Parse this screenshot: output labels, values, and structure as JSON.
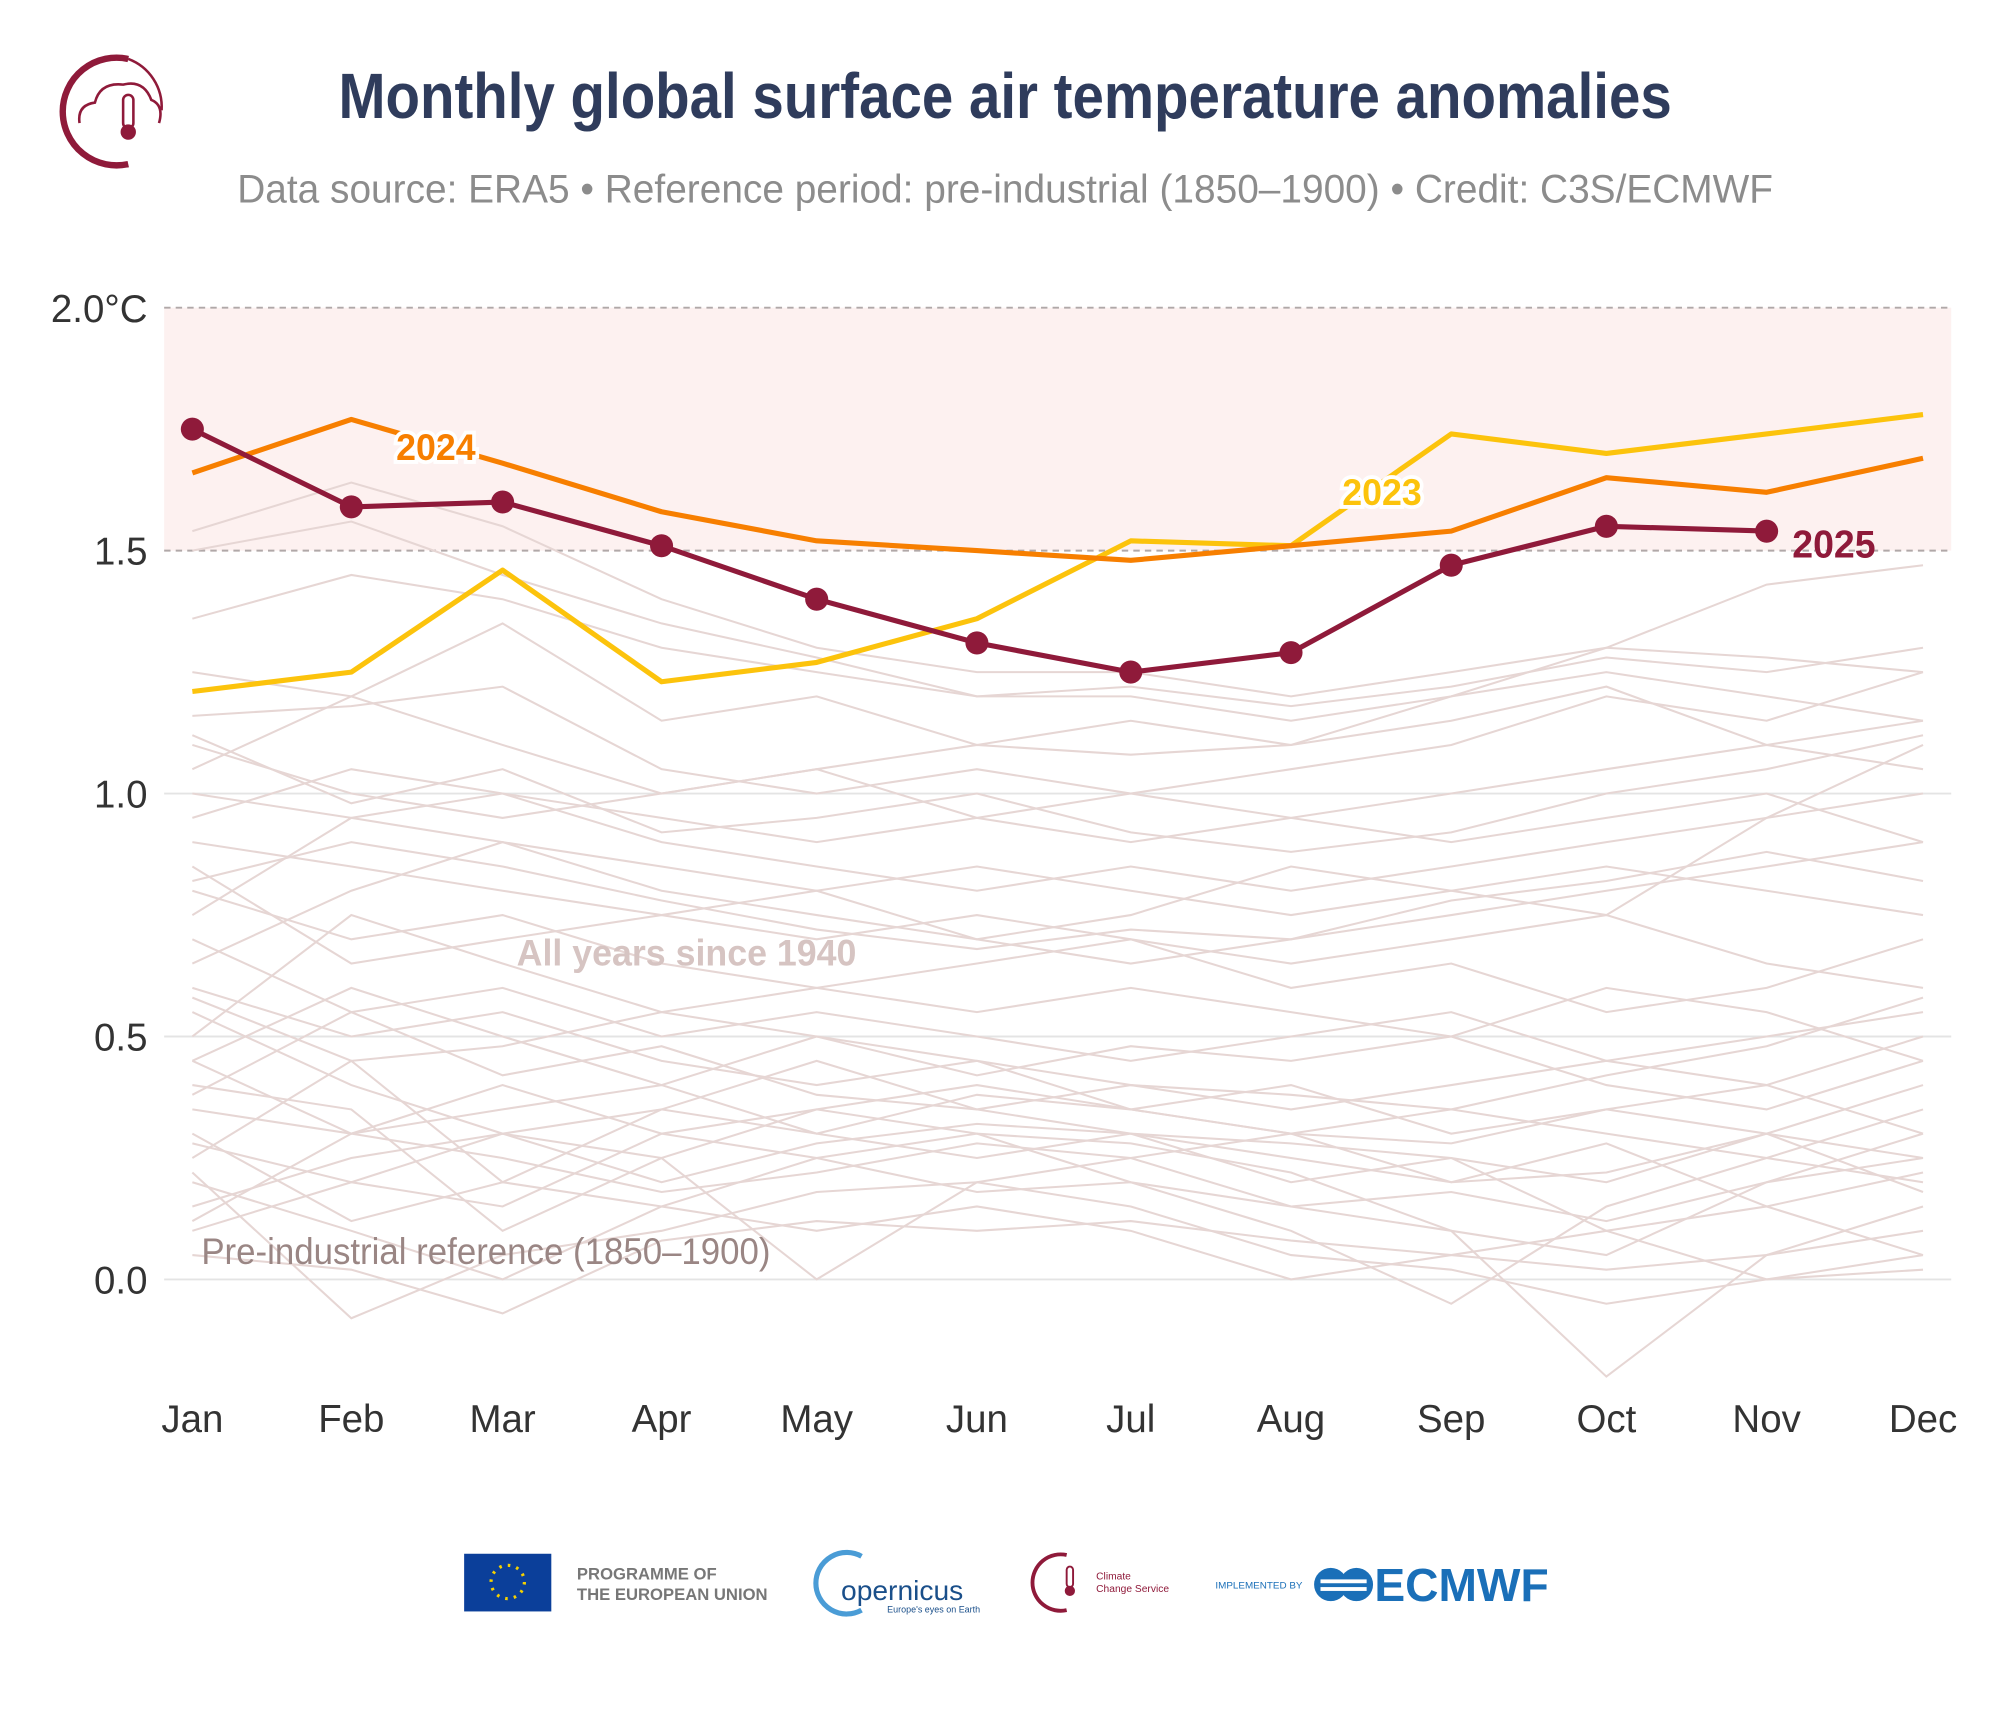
{
  "header": {
    "title": "Monthly global surface air temperature anomalies",
    "subtitle": "Data source: ERA5 • Reference period: pre-industrial (1850–1900) • Credit: C3S/ECMWF"
  },
  "chart_data": {
    "type": "line",
    "title": "Monthly global surface air temperature anomalies",
    "subtitle": "Data source: ERA5 • Reference period: pre-industrial (1850–1900) • Credit: C3S/ECMWF",
    "xlabel": "",
    "ylabel": "",
    "categories": [
      "Jan",
      "Feb",
      "Mar",
      "Apr",
      "May",
      "Jun",
      "Jul",
      "Aug",
      "Sep",
      "Oct",
      "Nov",
      "Dec"
    ],
    "ylim": [
      -0.2,
      2.0
    ],
    "yticks": [
      0.0,
      0.5,
      1.0,
      1.5,
      2.0
    ],
    "ytick_labels": [
      "0.0",
      "0.5",
      "1.0",
      "1.5",
      "2.0°C"
    ],
    "grid": true,
    "shaded_band": [
      1.5,
      2.0
    ],
    "dashed_lines": [
      1.5,
      2.0
    ],
    "series": [
      {
        "name": "2023",
        "color": "#fcc30c",
        "values": [
          1.21,
          1.25,
          1.46,
          1.23,
          1.27,
          1.36,
          1.52,
          1.51,
          1.74,
          1.7,
          1.74,
          1.78
        ]
      },
      {
        "name": "2024",
        "color": "#f77f00",
        "values": [
          1.66,
          1.77,
          1.68,
          1.58,
          1.52,
          1.5,
          1.48,
          1.51,
          1.54,
          1.65,
          1.62,
          1.69
        ]
      },
      {
        "name": "2025",
        "color": "#8f1a3a",
        "markers": true,
        "values": [
          1.75,
          1.59,
          1.6,
          1.51,
          1.4,
          1.31,
          1.25,
          1.29,
          1.47,
          1.55,
          1.54,
          null
        ]
      }
    ],
    "background_series_label": "All years since 1940",
    "background_color": "#e6d6d4",
    "background_series": [
      [
        0.22,
        -0.08,
        0.05,
        0.1,
        0.18,
        0.2,
        0.15,
        0.05,
        0.02,
        -0.05,
        0.0,
        0.05
      ],
      [
        0.05,
        0.02,
        -0.07,
        0.08,
        0.12,
        0.1,
        0.12,
        0.08,
        0.05,
        0.02,
        0.05,
        0.1
      ],
      [
        0.3,
        0.12,
        0.2,
        0.15,
        0.25,
        0.3,
        0.28,
        0.22,
        0.1,
        -0.2,
        0.05,
        0.15
      ],
      [
        0.4,
        0.35,
        0.1,
        0.25,
        0.0,
        0.2,
        0.25,
        0.15,
        0.18,
        0.12,
        0.2,
        0.3
      ],
      [
        0.15,
        0.25,
        0.3,
        0.2,
        0.28,
        0.32,
        0.3,
        0.25,
        0.2,
        0.28,
        0.15,
        0.22
      ],
      [
        0.55,
        0.4,
        0.3,
        0.35,
        0.45,
        0.35,
        0.3,
        0.28,
        0.25,
        0.2,
        0.3,
        0.25
      ],
      [
        0.1,
        0.2,
        0.15,
        0.3,
        0.25,
        0.18,
        0.2,
        0.1,
        -0.05,
        0.15,
        0.25,
        0.35
      ],
      [
        0.35,
        0.3,
        0.4,
        0.3,
        0.35,
        0.4,
        0.35,
        0.3,
        0.35,
        0.3,
        0.25,
        0.2
      ],
      [
        0.6,
        0.5,
        0.55,
        0.45,
        0.4,
        0.45,
        0.4,
        0.35,
        0.4,
        0.45,
        0.4,
        0.5
      ],
      [
        0.25,
        0.45,
        0.2,
        0.35,
        0.3,
        0.25,
        0.3,
        0.2,
        0.25,
        0.1,
        0.15,
        0.05
      ],
      [
        0.45,
        0.6,
        0.5,
        0.4,
        0.5,
        0.45,
        0.35,
        0.4,
        0.3,
        0.35,
        0.4,
        0.3
      ],
      [
        0.7,
        0.55,
        0.6,
        0.5,
        0.55,
        0.5,
        0.45,
        0.5,
        0.55,
        0.45,
        0.5,
        0.55
      ],
      [
        0.8,
        0.7,
        0.75,
        0.65,
        0.6,
        0.55,
        0.6,
        0.55,
        0.5,
        0.6,
        0.55,
        0.45
      ],
      [
        0.5,
        0.75,
        0.65,
        0.55,
        0.6,
        0.65,
        0.7,
        0.6,
        0.65,
        0.55,
        0.6,
        0.7
      ],
      [
        0.9,
        0.85,
        0.8,
        0.75,
        0.7,
        0.75,
        0.7,
        0.65,
        0.7,
        0.75,
        0.65,
        0.6
      ],
      [
        0.65,
        0.8,
        0.9,
        0.8,
        0.75,
        0.7,
        0.65,
        0.7,
        0.75,
        0.8,
        0.85,
        0.9
      ],
      [
        1.0,
        0.95,
        0.9,
        0.85,
        0.8,
        0.85,
        0.8,
        0.75,
        0.8,
        0.85,
        0.8,
        0.75
      ],
      [
        0.75,
        0.95,
        1.0,
        0.9,
        0.85,
        0.8,
        0.85,
        0.8,
        0.85,
        0.9,
        0.95,
        1.0
      ],
      [
        1.1,
        1.0,
        0.95,
        1.0,
        1.05,
        0.95,
        0.9,
        0.95,
        0.9,
        0.95,
        1.0,
        0.9
      ],
      [
        0.95,
        1.05,
        1.0,
        0.95,
        0.9,
        0.95,
        1.0,
        0.95,
        1.0,
        1.05,
        1.1,
        1.05
      ],
      [
        1.16,
        1.18,
        1.22,
        1.05,
        1.0,
        1.05,
        1.0,
        1.05,
        1.1,
        1.2,
        1.15,
        1.25
      ],
      [
        1.25,
        1.2,
        1.35,
        1.15,
        1.2,
        1.1,
        1.15,
        1.1,
        1.2,
        1.25,
        1.2,
        1.15
      ],
      [
        1.36,
        1.45,
        1.4,
        1.3,
        1.25,
        1.2,
        1.2,
        1.15,
        1.2,
        1.3,
        1.28,
        1.25
      ],
      [
        1.54,
        1.64,
        1.55,
        1.4,
        1.3,
        1.25,
        1.25,
        1.2,
        1.25,
        1.3,
        1.43,
        1.47
      ],
      [
        1.5,
        1.56,
        1.45,
        1.35,
        1.28,
        1.2,
        1.22,
        1.18,
        1.22,
        1.28,
        1.25,
        1.3
      ],
      [
        1.05,
        1.2,
        1.1,
        1.0,
        1.05,
        1.1,
        1.08,
        1.1,
        1.15,
        1.22,
        1.1,
        1.15
      ],
      [
        0.85,
        0.65,
        0.7,
        0.75,
        0.8,
        0.7,
        0.75,
        0.85,
        0.8,
        0.75,
        0.95,
        1.1
      ],
      [
        0.2,
        0.1,
        0.0,
        0.15,
        0.1,
        0.15,
        0.1,
        0.0,
        0.05,
        0.1,
        0.0,
        0.02
      ],
      [
        0.28,
        0.2,
        0.3,
        0.25,
        0.35,
        0.3,
        0.2,
        0.15,
        0.1,
        0.05,
        0.2,
        0.25
      ],
      [
        0.45,
        0.3,
        0.35,
        0.4,
        0.3,
        0.38,
        0.35,
        0.3,
        0.28,
        0.35,
        0.3,
        0.4
      ],
      [
        0.12,
        0.3,
        0.25,
        0.18,
        0.22,
        0.28,
        0.25,
        0.3,
        0.2,
        0.22,
        0.3,
        0.18
      ],
      [
        0.58,
        0.45,
        0.48,
        0.55,
        0.5,
        0.42,
        0.48,
        0.45,
        0.5,
        0.4,
        0.35,
        0.45
      ],
      [
        0.38,
        0.55,
        0.42,
        0.48,
        0.38,
        0.35,
        0.4,
        0.38,
        0.35,
        0.42,
        0.48,
        0.58
      ],
      [
        0.82,
        0.9,
        0.85,
        0.78,
        0.72,
        0.68,
        0.72,
        0.7,
        0.78,
        0.82,
        0.88,
        0.82
      ],
      [
        1.12,
        0.98,
        1.05,
        0.92,
        0.95,
        1.0,
        0.92,
        0.88,
        0.92,
        1.0,
        1.05,
        1.12
      ]
    ],
    "annotations": {
      "label_2024": "2024",
      "label_2023": "2023",
      "label_2025": "2025",
      "all_years": "All years since 1940",
      "preindustrial": "Pre-industrial reference (1850–1900)"
    }
  },
  "footer": {
    "eu_line1": "PROGRAMME OF",
    "eu_line2": "THE EUROPEAN UNION",
    "copernicus": "opernicus",
    "copernicus_tagline": "Europe's eyes on Earth",
    "c3s_line1": "Climate",
    "c3s_line2": "Change Service",
    "implemented_by": "IMPLEMENTED BY",
    "ecmwf": "ECMWF"
  }
}
